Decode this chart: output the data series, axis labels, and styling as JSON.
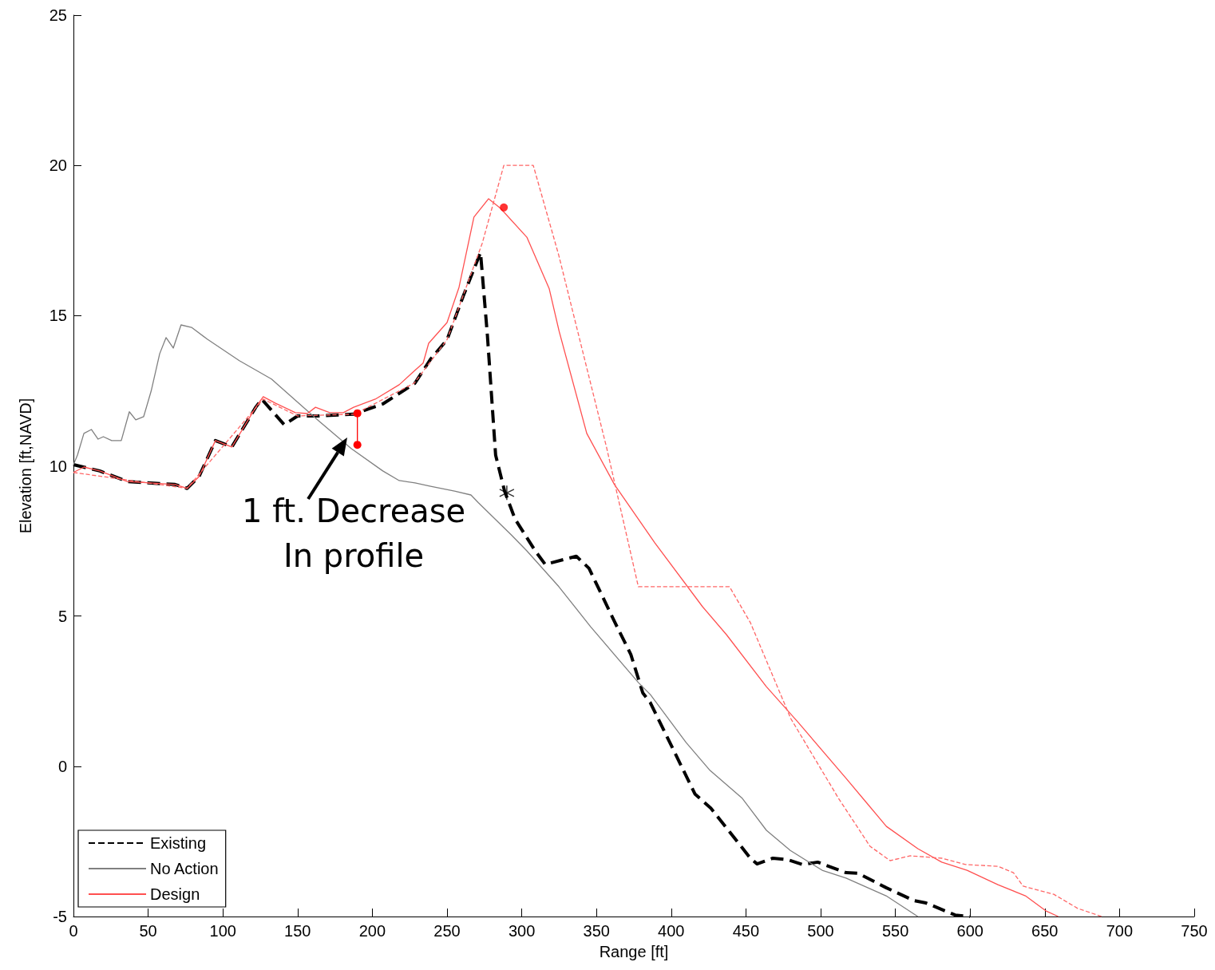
{
  "chart_data": {
    "type": "line",
    "xlabel": "Range [ft]",
    "ylabel": "Elevation [ft,NAVD]",
    "xlim": [
      0,
      750
    ],
    "xticks": [
      0,
      50,
      100,
      150,
      200,
      250,
      300,
      350,
      400,
      450,
      500,
      550,
      600,
      650,
      700,
      750
    ],
    "ylim": [
      -5,
      25
    ],
    "yticks": [
      -5,
      0,
      5,
      10,
      15,
      20,
      25
    ],
    "grid": false,
    "legend": "bottom left",
    "marker": "none",
    "annotations": [
      "1 ft. Decrease\nIn profile"
    ],
    "series": [
      {
        "name": "Existing",
        "color": "#000000",
        "line_style": "dashed",
        "x": [
          0,
          17.6,
          36,
          68,
          76,
          84,
          95,
          106,
          122,
          126,
          141,
          150,
          164.5,
          187.5,
          207,
          228.5,
          239,
          250,
          261,
          272.4,
          277,
          282.5,
          288.5,
          295.5,
          309,
          315.7,
          336.5,
          345,
          362.4,
          373,
          381,
          386,
          416,
          426.5,
          453,
          457.5,
          468,
          478,
          487.7,
          498,
          517,
          525,
          543.8,
          562.5,
          570.5,
          590,
          600
        ],
        "values": [
          10.04,
          9.83,
          9.48,
          9.38,
          9.25,
          9.64,
          10.84,
          10.63,
          11.95,
          12.22,
          11.37,
          11.66,
          11.66,
          11.72,
          12.06,
          12.75,
          13.55,
          14.2,
          15.67,
          17.1,
          14.35,
          10.36,
          9.16,
          8.23,
          7.17,
          6.72,
          6.99,
          6.59,
          4.78,
          3.72,
          2.44,
          2.12,
          -0.93,
          -1.39,
          -3.06,
          -3.25,
          -3.06,
          -3.11,
          -3.27,
          -3.19,
          -3.54,
          -3.56,
          -4.04,
          -4.47,
          -4.55,
          -4.95,
          -5
        ]
      },
      {
        "name": "No Action",
        "color": "#808080",
        "line_style": "solid",
        "x": [
          0,
          2.7,
          7,
          12,
          16.5,
          20,
          25.6,
          32,
          37.4,
          41.7,
          47,
          52,
          57.7,
          62,
          66.8,
          72,
          79,
          89.7,
          111,
          132.5,
          164.5,
          186,
          207,
          218,
          228.6,
          239,
          255,
          266,
          271,
          293,
          303.4,
          324.8,
          346,
          378,
          386,
          410,
          426,
          447.6,
          463.7,
          479.7,
          501,
          517,
          543.8,
          565
        ],
        "values": [
          10.04,
          10.36,
          11.08,
          11.21,
          10.89,
          10.97,
          10.84,
          10.84,
          11.8,
          11.53,
          11.64,
          12.49,
          13.73,
          14.27,
          13.92,
          14.69,
          14.61,
          14.21,
          13.5,
          12.89,
          11.48,
          10.57,
          9.83,
          9.51,
          9.43,
          9.32,
          9.16,
          9.03,
          8.77,
          7.7,
          7.17,
          5.98,
          4.65,
          2.79,
          2.39,
          0.79,
          -0.14,
          -1.07,
          -2.13,
          -2.8,
          -3.46,
          -3.72,
          -4.31,
          -5
        ]
      },
      {
        "name": "Design",
        "color": "#ff5050",
        "line_style": "solid",
        "x": [
          0,
          7,
          17.6,
          36,
          68,
          76,
          84,
          95,
          106,
          122,
          127,
          135,
          148.5,
          156.5,
          162,
          171.5,
          180.6,
          187.5,
          202,
          218,
          228.6,
          234,
          237.7,
          250,
          258,
          268,
          277.8,
          285.8,
          303.4,
          318.4,
          325,
          343.5,
          362,
          389,
          421,
          437,
          463.7,
          485,
          517,
          530.5,
          544,
          565,
          581,
          598,
          618.6,
          637,
          650.6,
          659
        ],
        "values": [
          9.78,
          9.96,
          9.83,
          9.48,
          9.38,
          9.25,
          9.64,
          10.84,
          10.63,
          11.95,
          12.3,
          12.09,
          11.77,
          11.74,
          11.95,
          11.77,
          11.77,
          11.95,
          12.22,
          12.7,
          13.18,
          13.42,
          14.08,
          14.77,
          15.94,
          18.28,
          18.89,
          18.57,
          17.61,
          15.89,
          14.48,
          11.08,
          9.38,
          7.44,
          5.31,
          4.38,
          2.65,
          1.46,
          -0.4,
          -1.2,
          -2.0,
          -2.74,
          -3.19,
          -3.46,
          -3.94,
          -4.31,
          -4.81,
          -5
        ]
      },
      {
        "color": "#ff6666",
        "line_style": "dashed",
        "x": [
          0,
          76,
          127,
          150,
          188,
          228,
          250,
          273.5,
          288,
          307.7,
          324.8,
          356.8,
          378,
          439,
          453,
          480,
          512,
          533,
          546.5,
          560,
          581,
          597,
          618.6,
          629,
          635.5,
          656,
          672,
          688
        ],
        "values": [
          9.78,
          9.25,
          12.22,
          11.66,
          11.72,
          12.75,
          14.2,
          17.4,
          20,
          20,
          17.0,
          10.6,
          5.98,
          5.98,
          4.78,
          1.59,
          -1.07,
          -2.66,
          -3.14,
          -2.98,
          -3.06,
          -3.27,
          -3.33,
          -3.54,
          -3.99,
          -4.26,
          -4.73,
          -5
        ]
      },
      {
        "color": "#ff0000",
        "line_style": "solid",
        "marker": "circle",
        "x": [
          190,
          190
        ],
        "values": [
          11.75,
          10.7
        ]
      },
      {
        "type": "scatter",
        "color": "#ff0000",
        "marker": "circle",
        "x": [
          288
        ],
        "values": [
          18.6
        ]
      },
      {
        "type": "scatter",
        "color": "#000000",
        "marker": "cross",
        "x": [
          290
        ],
        "values": [
          9.1
        ]
      }
    ]
  }
}
